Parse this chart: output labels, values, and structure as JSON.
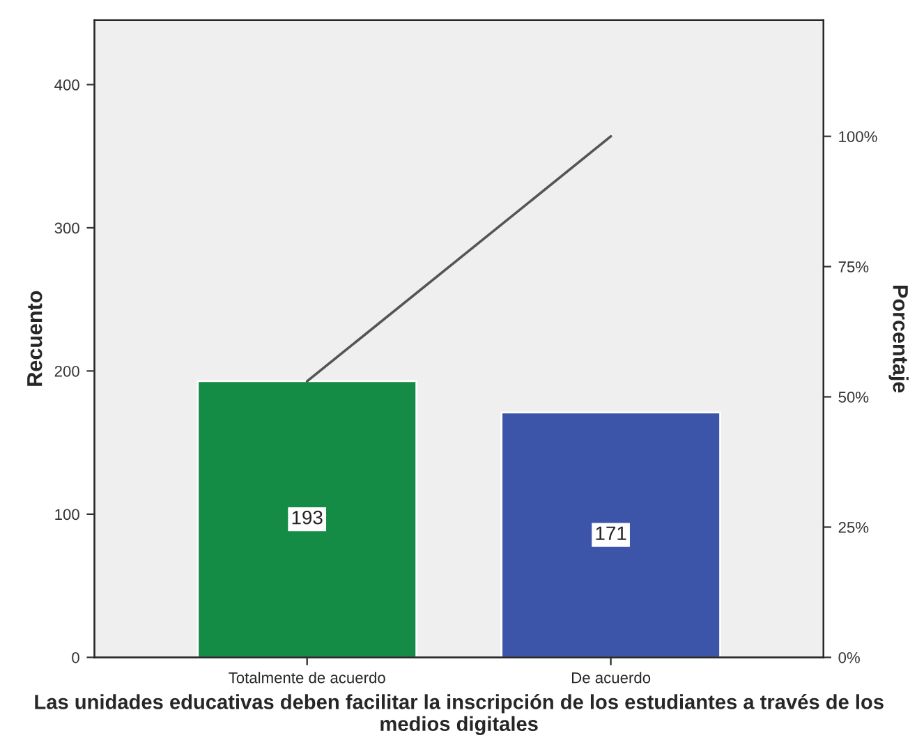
{
  "chart_data": {
    "type": "bar",
    "xlabel": "Las unidades educativas deben facilitar la inscripción de los estudiantes a través de los medios digitales",
    "ylabel": "Recuento",
    "y2label": "Porcentaje",
    "categories": [
      "Totalmente de acuerdo",
      "De acuerdo"
    ],
    "series": [
      {
        "colors": [
          "#148c45",
          "#3c55a8"
        ],
        "values": [
          193,
          171
        ],
        "value_labels": [
          "193",
          "171"
        ]
      },
      {
        "type": "line",
        "color": "#555555",
        "axis": "y2",
        "values": [
          53,
          100
        ]
      }
    ],
    "ylim": [
      0,
      445
    ],
    "yticks": [
      0,
      100,
      200,
      300,
      400
    ],
    "y2lim": [
      0,
      122.3
    ],
    "y2ticks": [
      {
        "value": 0,
        "label": "0%"
      },
      {
        "value": 25,
        "label": "25%"
      },
      {
        "value": 50,
        "label": "50%"
      },
      {
        "value": 75,
        "label": "75%"
      },
      {
        "value": 100,
        "label": "100%"
      }
    ],
    "grid": false,
    "legend": false
  }
}
